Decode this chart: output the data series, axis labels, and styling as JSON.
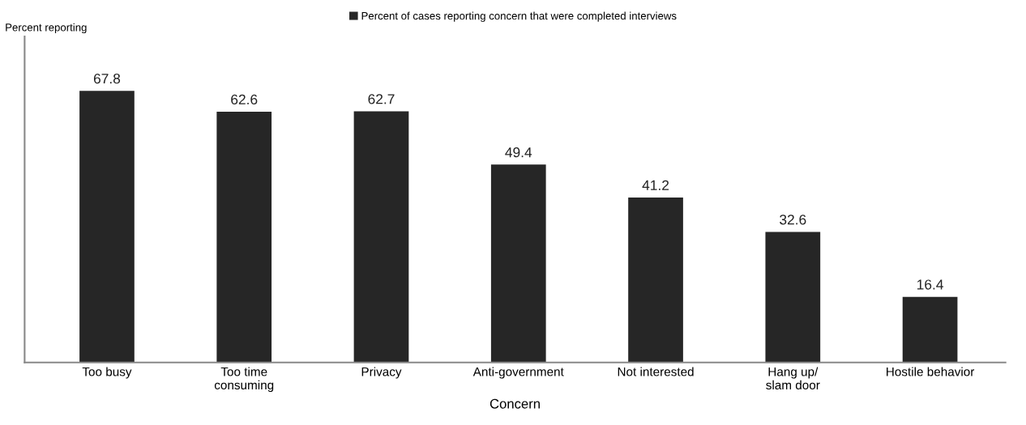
{
  "chart_data": {
    "type": "bar",
    "categories": [
      "Too busy",
      "Too time\nconsuming",
      "Privacy",
      "Anti-government",
      "Not interested",
      "Hang up/\nslam door",
      "Hostile behavior"
    ],
    "series": [
      {
        "name": "Percent of cases reporting concern that were completed interviews",
        "color": "#262626",
        "values": [
          67.8,
          62.6,
          62.7,
          49.4,
          41.2,
          32.6,
          16.4
        ]
      }
    ],
    "xlabel": "Concern",
    "annotations": [
      "Percent reporting"
    ],
    "data_labels": true,
    "legend": "top",
    "grid": false
  }
}
